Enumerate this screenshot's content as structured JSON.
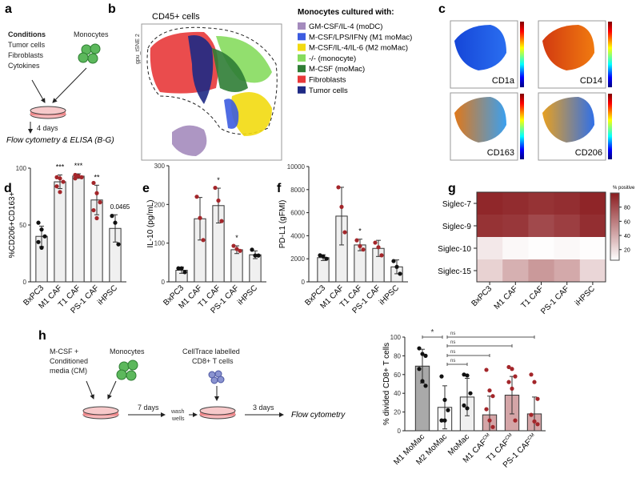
{
  "panels": {
    "a": "a",
    "b": "b",
    "c": "c",
    "d": "d",
    "e": "e",
    "f": "f",
    "g": "g",
    "h": "h"
  },
  "panel_a": {
    "conditions_label": "Conditions",
    "conditions": [
      "Tumor cells",
      "Fibroblasts",
      "Cytokines"
    ],
    "monocytes": "Monocytes",
    "days": "4 days",
    "readout": "Flow cytometry & ELISA (B-G)"
  },
  "panel_b": {
    "title": "CD45+ cells",
    "ylabel": "gpu_tSNE 2",
    "legend_title": "Monocytes cultured with:",
    "legend": [
      {
        "label": "GM-CSF/IL-4 (moDC)",
        "color": "#a48bbd"
      },
      {
        "label": "M-CSF/LPS/IFNγ (M1 moMac)",
        "color": "#3c5ce0"
      },
      {
        "label": "M-CSF/IL-4/IL-6 (M2 moMac)",
        "color": "#f2da10"
      },
      {
        "label": "-/- (monocyte)",
        "color": "#86dc5e"
      },
      {
        "label": "M-CSF (moMac)",
        "color": "#2f7d35"
      },
      {
        "label": "Fibroblasts",
        "color": "#e8383a"
      },
      {
        "label": "Tumor cells",
        "color": "#1e2a85"
      }
    ]
  },
  "panel_c": {
    "markers": [
      "CD1a",
      "CD14",
      "CD163",
      "CD206"
    ]
  },
  "panel_h_diagram": {
    "cm": [
      "M-CSF +",
      "Conditioned",
      "media (CM)"
    ],
    "monocytes": "Monocytes",
    "tcells": [
      "CellTrace labelled",
      "CD8+ T cells"
    ],
    "days7": "7 days",
    "wash": [
      "wash",
      "wells"
    ],
    "days3": "3 days",
    "readout": "Flow cytometry"
  },
  "colors": {
    "bar": "#f0f0f0",
    "dot_red": "#a3262a",
    "dot_black": "#111111",
    "heat_high": "#8a1c1f"
  },
  "chart_data": [
    {
      "id": "d",
      "type": "bar",
      "ylabel": "%CD206+CD163+",
      "ylim": [
        0,
        100
      ],
      "yticks": [
        0,
        50,
        100
      ],
      "categories": [
        "BxPC3",
        "M1 CAF",
        "T1 CAF",
        "PS-1 CAF",
        "iHPSC"
      ],
      "values": [
        40,
        88,
        93,
        72,
        47
      ],
      "errors": [
        9,
        6,
        2,
        13,
        12
      ],
      "points": [
        [
          52,
          46,
          40,
          35,
          30
        ],
        [
          92,
          91,
          88,
          84,
          79
        ],
        [
          94,
          93,
          92,
          91,
          93
        ],
        [
          87,
          78,
          70,
          63,
          56
        ],
        [
          58,
          52,
          33
        ]
      ],
      "point_colors": [
        "black",
        "red",
        "red",
        "red",
        "black"
      ],
      "annotations": [
        "",
        "***",
        "***",
        "**",
        "0.0465"
      ]
    },
    {
      "id": "e",
      "type": "bar",
      "ylabel": "IL-10 (pg/mL)",
      "ylim": [
        0,
        300
      ],
      "yticks": [
        0,
        100,
        200,
        300
      ],
      "categories": [
        "BxPC3",
        "M1 CAF",
        "T1 CAF",
        "PS-1 CAF",
        "iHPSC"
      ],
      "values": [
        30,
        163,
        197,
        83,
        70
      ],
      "errors": [
        8,
        55,
        45,
        10,
        10
      ],
      "points": [
        [
          35,
          35,
          25
        ],
        [
          220,
          165,
          108
        ],
        [
          243,
          210,
          157
        ],
        [
          93,
          85,
          80
        ],
        [
          83,
          68,
          68
        ]
      ],
      "point_colors": [
        "black",
        "red",
        "red",
        "red",
        "black"
      ],
      "annotations": [
        "",
        "",
        "*",
        "*",
        ""
      ]
    },
    {
      "id": "f",
      "type": "bar",
      "ylabel": "PD-L1 (gFMI)",
      "ylim": [
        0,
        10000
      ],
      "yticks": [
        0,
        2000,
        4000,
        6000,
        8000,
        10000
      ],
      "categories": [
        "BxPC3",
        "M1 CAF",
        "T1 CAF",
        "PS-1 CAF",
        "iHPSC"
      ],
      "values": [
        2100,
        5700,
        3200,
        2900,
        1300
      ],
      "errors": [
        250,
        2500,
        500,
        700,
        600
      ],
      "points": [
        [
          2300,
          2200,
          2000
        ],
        [
          8200,
          6500,
          4300
        ],
        [
          3600,
          3100,
          2800
        ],
        [
          3400,
          3000,
          2300
        ],
        [
          1800,
          1300,
          700
        ]
      ],
      "point_colors": [
        "black",
        "red",
        "red",
        "red",
        "black"
      ],
      "annotations": [
        "",
        "",
        "*",
        "",
        ""
      ]
    },
    {
      "id": "g",
      "type": "heatmap",
      "colorbar_label": "% positive",
      "colorbar_ticks": [
        20,
        40,
        60,
        80
      ],
      "rows": [
        "Siglec-7",
        "Siglec-9",
        "Siglec-10",
        "Siglec-15"
      ],
      "columns": [
        "BxPC3",
        "M1 CAF",
        "T1 CAF",
        "PS-1 CAF",
        "iHPSC"
      ],
      "values": [
        [
          95,
          93,
          90,
          92,
          96
        ],
        [
          90,
          88,
          80,
          85,
          92
        ],
        [
          10,
          3,
          1,
          3,
          1
        ],
        [
          20,
          35,
          45,
          38,
          18
        ]
      ]
    },
    {
      "id": "h",
      "type": "bar",
      "ylabel": "% divided CD8+ T cells",
      "ylim": [
        0,
        100
      ],
      "yticks": [
        0,
        20,
        40,
        60,
        80,
        100
      ],
      "categories": [
        "M1 MoMac",
        "M2 MoMac",
        "MoMac",
        "M1 CAF",
        "T1 CAF",
        "PS-1 CAF"
      ],
      "superscripts": [
        "",
        "",
        "",
        "CM",
        "CM",
        "CM"
      ],
      "values": [
        69,
        25,
        36,
        17,
        38,
        18
      ],
      "errors": [
        18,
        23,
        20,
        20,
        20,
        18
      ],
      "points": [
        [
          88,
          82,
          80,
          66,
          53,
          48
        ],
        [
          58,
          33,
          22,
          11,
          11
        ],
        [
          60,
          59,
          40,
          27,
          24
        ],
        [
          65,
          43,
          37,
          23,
          11,
          4
        ],
        [
          68,
          66,
          58,
          52,
          45,
          11
        ],
        [
          60,
          52,
          34,
          17,
          10,
          7
        ]
      ],
      "point_colors": [
        "black",
        "black",
        "black",
        "red",
        "red",
        "red"
      ],
      "bar_colors": [
        "#a9a9a9",
        "#f8f8f8",
        "#f0f0f0",
        "#d4a5a7",
        "#d4a5a7",
        "#d4a5a7"
      ],
      "comparisons": [
        {
          "from": 0,
          "to": 1,
          "label": "*"
        },
        {
          "from": 1,
          "to": 2,
          "label": "ns"
        },
        {
          "from": 1,
          "to": 3,
          "label": "ns"
        },
        {
          "from": 1,
          "to": 4,
          "label": "ns"
        },
        {
          "from": 1,
          "to": 5,
          "label": "ns"
        }
      ]
    }
  ]
}
